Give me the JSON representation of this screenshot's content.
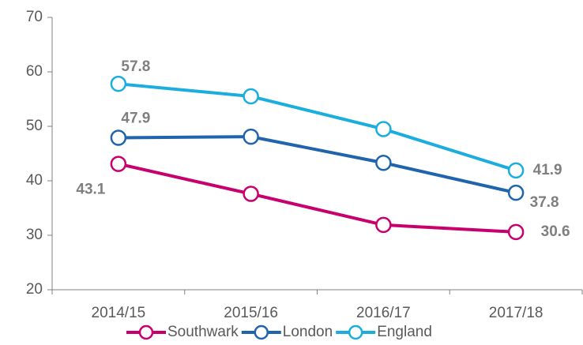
{
  "chart_data": {
    "type": "line",
    "categories": [
      "2014/15",
      "2015/16",
      "2016/17",
      "2017/18"
    ],
    "series": [
      {
        "name": "Southwark",
        "color": "#c8006e",
        "values": [
          43.1,
          37.6,
          31.9,
          30.6
        ],
        "value_labels": [
          "43.1",
          null,
          null,
          "30.6"
        ]
      },
      {
        "name": "London",
        "color": "#1f64ad",
        "values": [
          47.9,
          48.1,
          43.3,
          37.8
        ],
        "value_labels": [
          "47.9",
          null,
          null,
          "37.8"
        ]
      },
      {
        "name": "England",
        "color": "#1badde",
        "values": [
          57.8,
          55.5,
          49.5,
          41.9
        ],
        "value_labels": [
          "57.8",
          null,
          null,
          "41.9"
        ]
      }
    ],
    "ylim": [
      20,
      70
    ],
    "yticks": [
      20,
      30,
      40,
      50,
      60,
      70
    ],
    "grid": false,
    "legend": "bottom"
  }
}
